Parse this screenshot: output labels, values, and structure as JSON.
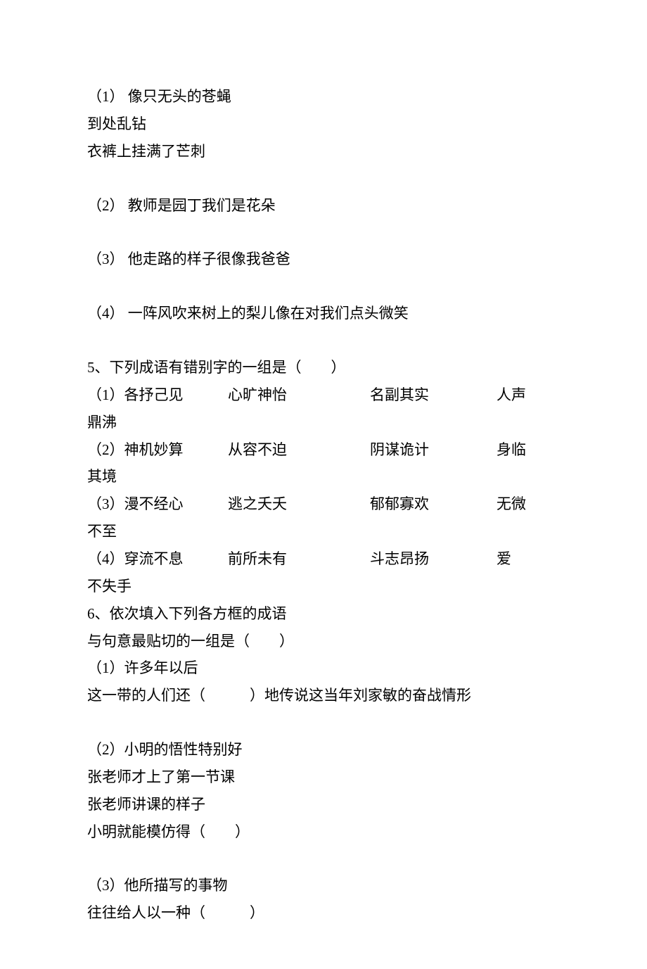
{
  "q1": {
    "label": "（1）",
    "spacer": "  ",
    "line1": "像只无头的苍蝇",
    "line2": "到处乱钻",
    "line3": "衣裤上挂满了芒刺"
  },
  "q2": {
    "label": "（2）",
    "spacer": "  ",
    "text": "教师是园丁我们是花朵"
  },
  "q3": {
    "label": "（3）",
    "spacer": "  ",
    "text": "他走路的样子很像我爸爸"
  },
  "q4": {
    "label": "（4）",
    "spacer": "  ",
    "text": "一阵风吹来树上的梨儿像在对我们点头微笑"
  },
  "q5": {
    "stem": "5、下列成语有错别字的一组是（　　）",
    "rows": [
      {
        "label": "（1）各抒己见",
        "a": "心旷神怡",
        "b": "名副其实",
        "c": "人声",
        "wrap": "鼎沸"
      },
      {
        "label": "（2）神机妙算",
        "a": "从容不迫",
        "b": "阴谋诡计",
        "c": "身临",
        "wrap": "其境"
      },
      {
        "label": "（3）漫不经心",
        "a": "逃之夭夭",
        "b": "郁郁寡欢",
        "c": "无微",
        "wrap": "不至"
      },
      {
        "label": "（4）穿流不息",
        "a": "前所未有",
        "b": "斗志昂扬",
        "c": "爱",
        "wrap": "不失手"
      }
    ]
  },
  "q6": {
    "line1": "6、依次填入下列各方框的成语",
    "line2": "与句意最贴切的一组是（　　）",
    "items": [
      {
        "label": "（1）许多年以后",
        "lines": [
          "这一带的人们还（　　　）地传说这当年刘家敏的奋战情形"
        ]
      },
      {
        "label": "（2）小明的悟性特别好",
        "lines": [
          "张老师才上了第一节课",
          "张老师讲课的样子",
          "小明就能模仿得（　　）"
        ]
      },
      {
        "label": "（3）他所描写的事物",
        "lines": [
          "往往给人以一种（　　　）"
        ]
      }
    ]
  }
}
